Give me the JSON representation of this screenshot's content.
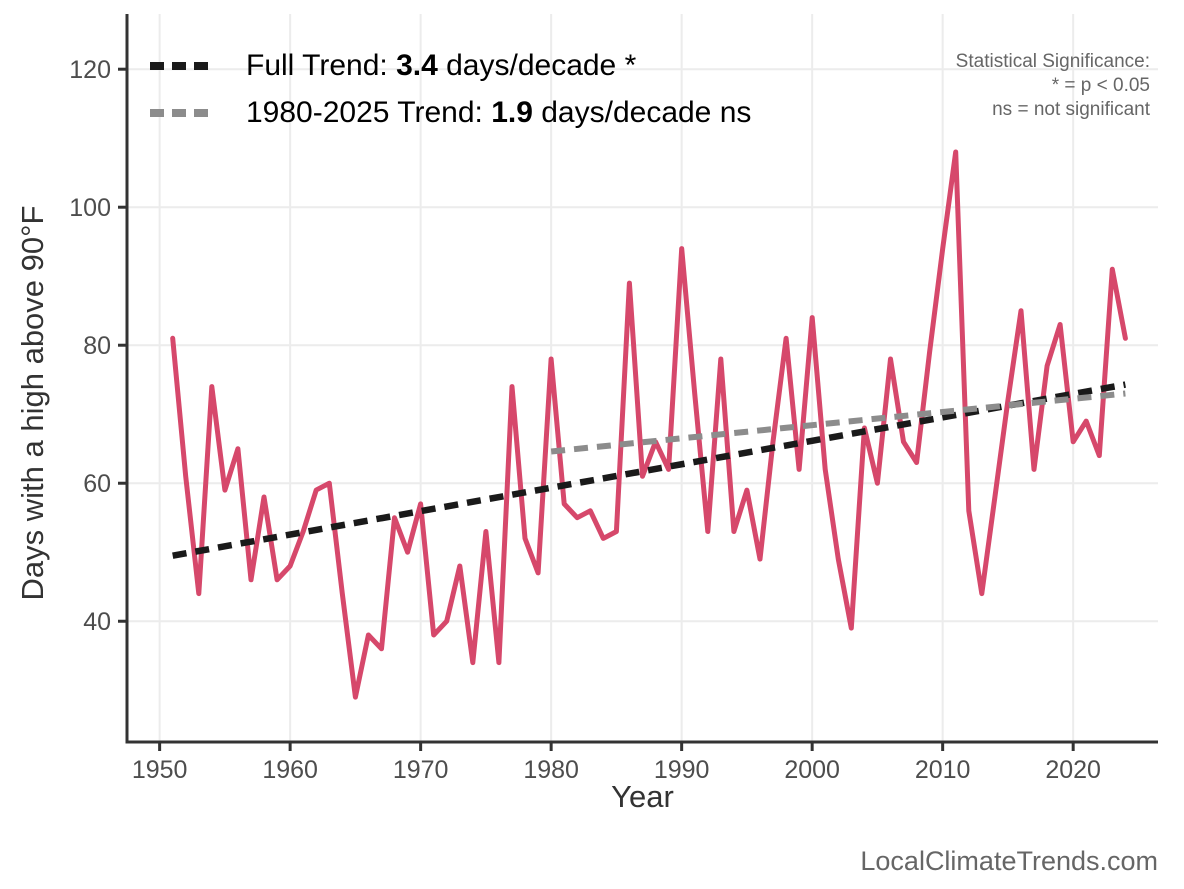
{
  "watermark": "LocalClimateTrends.com",
  "significance_note": {
    "line1": "Statistical Significance:",
    "line2": "* = p < 0.05",
    "line3": "ns = not significant"
  },
  "legend": {
    "full_trend": {
      "prefix": "Full Trend: ",
      "value": "3.4",
      "suffix": " days/decade *",
      "color": "#1a1a1a"
    },
    "recent_trend": {
      "prefix": "1980-2025 Trend: ",
      "value": "1.9",
      "suffix": " days/decade ns",
      "color": "#8c8c8c"
    }
  },
  "chart_data": {
    "type": "line",
    "title": "",
    "xlabel": "Year",
    "ylabel": "Days with a high above 90°F",
    "grid": true,
    "legend_position": "top-left",
    "xlim": [
      1947.5,
      2026.5
    ],
    "ylim": [
      22.5,
      128
    ],
    "x_ticks": [
      1950,
      1960,
      1970,
      1980,
      1990,
      2000,
      2010,
      2020
    ],
    "y_ticks": [
      40,
      60,
      80,
      100,
      120
    ],
    "colors": {
      "series": "#d6486b",
      "full_trend": "#1a1a1a",
      "recent_trend": "#8c8c8c",
      "gridline": "#ececec",
      "axis": "#333333",
      "tick_label": "#4d4d4d"
    },
    "series": [
      {
        "name": "Days with a high above 90°F",
        "color": "#d6486b",
        "x": [
          1951,
          1952,
          1953,
          1954,
          1955,
          1956,
          1957,
          1958,
          1959,
          1960,
          1961,
          1962,
          1963,
          1964,
          1965,
          1966,
          1967,
          1968,
          1969,
          1970,
          1971,
          1972,
          1973,
          1974,
          1975,
          1976,
          1977,
          1978,
          1979,
          1980,
          1981,
          1982,
          1983,
          1984,
          1985,
          1986,
          1987,
          1988,
          1989,
          1990,
          1991,
          1992,
          1993,
          1994,
          1995,
          1996,
          1997,
          1998,
          1999,
          2000,
          2001,
          2002,
          2003,
          2004,
          2005,
          2006,
          2007,
          2008,
          2009,
          2010,
          2011,
          2012,
          2013,
          2014,
          2015,
          2016,
          2017,
          2018,
          2019,
          2020,
          2021,
          2022,
          2023,
          2024
        ],
        "values": [
          81,
          61,
          44,
          74,
          59,
          65,
          46,
          58,
          46,
          48,
          53,
          59,
          60,
          44,
          29,
          38,
          36,
          55,
          50,
          57,
          38,
          40,
          48,
          34,
          53,
          34,
          74,
          52,
          47,
          78,
          57,
          55,
          56,
          52,
          53,
          89,
          61,
          66,
          62,
          94,
          73,
          53,
          78,
          53,
          59,
          49,
          66,
          81,
          62,
          84,
          62,
          49,
          39,
          68,
          60,
          78,
          66,
          63,
          79,
          94,
          108,
          56,
          44,
          58,
          72,
          85,
          62,
          77,
          83,
          66,
          69,
          64,
          91,
          81
        ]
      }
    ],
    "trend_lines": [
      {
        "name": "Full Trend",
        "slope_label": "3.4 days/decade",
        "significant": "*",
        "x1": 1951,
        "y1": 49.5,
        "x2": 2024,
        "y2": 74.3,
        "color": "#1a1a1a"
      },
      {
        "name": "1980-2025 Trend",
        "slope_label": "1.9 days/decade",
        "significant": "ns",
        "x1": 1980,
        "y1": 64.6,
        "x2": 2024,
        "y2": 73.0,
        "color": "#8c8c8c"
      }
    ]
  }
}
